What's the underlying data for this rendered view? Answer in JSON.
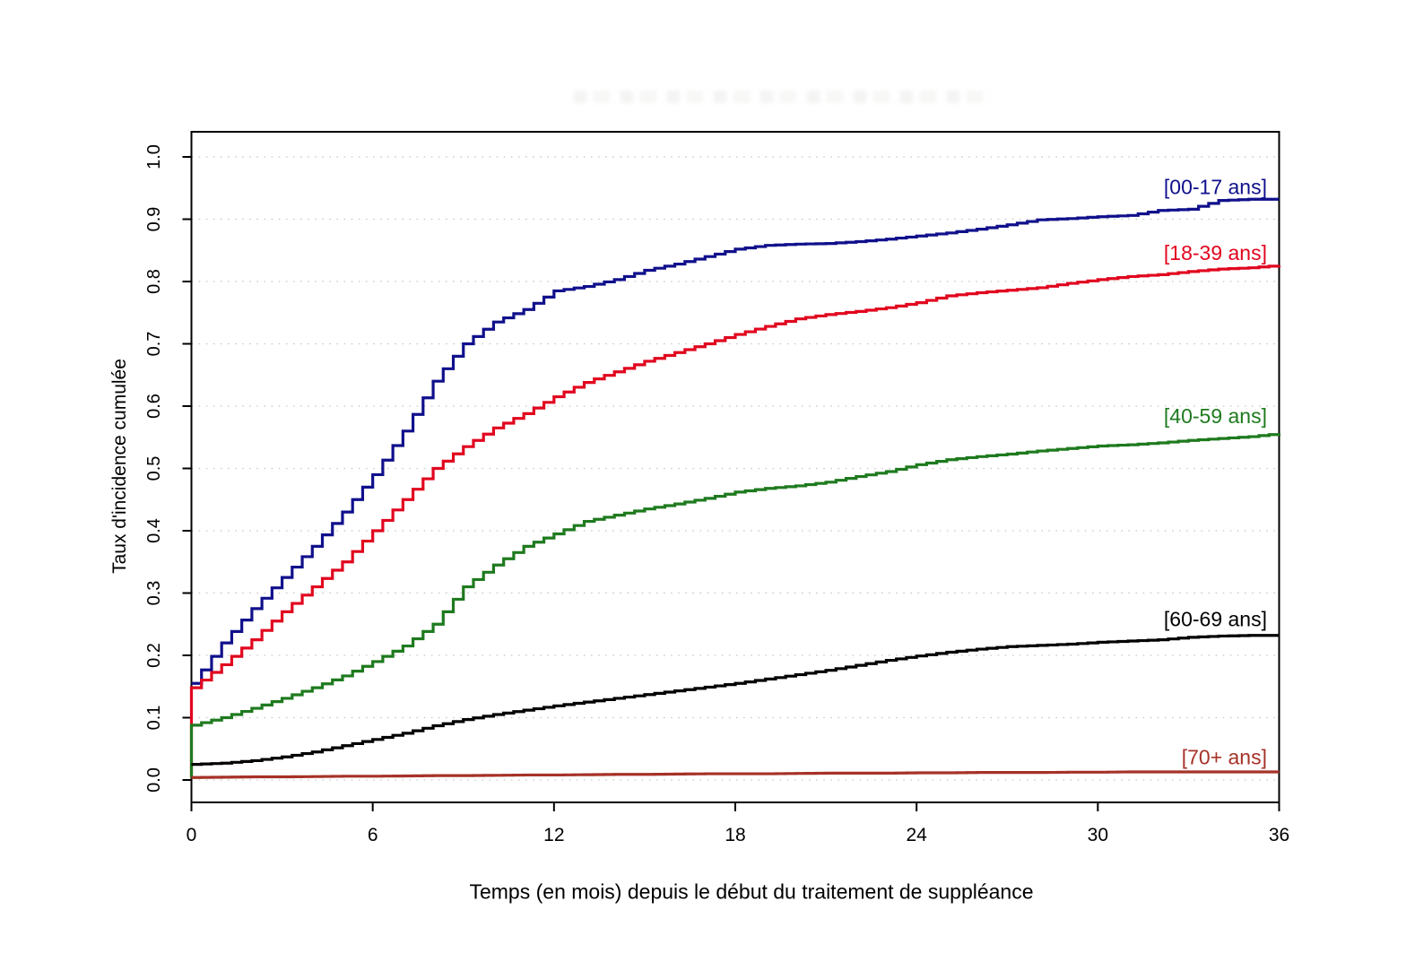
{
  "figure": {
    "x_axis_title": "Temps (en mois) depuis le début du traitement de suppléance",
    "y_axis_title": "Taux d'incidence cumulée",
    "background_color": "#FFFFFF",
    "axis_color": "#000000",
    "grid_color": "#C6C6C6"
  },
  "chart_data": {
    "type": "line",
    "subtype": "cumulative-incidence-step-curves",
    "title": "",
    "xlabel": "Temps (en mois) depuis le début du traitement de suppléance",
    "ylabel": "Taux d'incidence cumulée",
    "xlim": [
      0,
      36
    ],
    "ylim": [
      0.0,
      1.0
    ],
    "grid": "horizontal-dotted",
    "legend_position": "labels-at-right-inside-plot",
    "x_ticks": [
      0,
      6,
      12,
      18,
      24,
      30,
      36
    ],
    "x_tick_labels": [
      "0",
      "6",
      "12",
      "18",
      "24",
      "30",
      "36"
    ],
    "y_ticks": [
      0.0,
      0.1,
      0.2,
      0.3,
      0.4,
      0.5,
      0.6,
      0.7,
      0.8,
      0.9,
      1.0
    ],
    "y_tick_labels": [
      "0.0",
      "0.1",
      "0.2",
      "0.3",
      "0.4",
      "0.5",
      "0.6",
      "0.7",
      "0.8",
      "0.9",
      "1.0"
    ],
    "x": [
      0,
      1,
      2,
      3,
      4,
      5,
      6,
      7,
      8,
      9,
      10,
      11,
      12,
      13,
      14,
      15,
      16,
      17,
      18,
      19,
      20,
      21,
      22,
      23,
      24,
      25,
      26,
      27,
      28,
      29,
      30,
      31,
      32,
      33,
      34,
      35,
      36
    ],
    "series": [
      {
        "name": "[00-17 ans]",
        "color": "#10108C",
        "start_jump": false,
        "label_y": 0.952,
        "values": [
          0.155,
          0.22,
          0.275,
          0.325,
          0.375,
          0.43,
          0.49,
          0.56,
          0.64,
          0.7,
          0.735,
          0.755,
          0.785,
          0.792,
          0.803,
          0.818,
          0.828,
          0.84,
          0.852,
          0.858,
          0.86,
          0.861,
          0.864,
          0.868,
          0.873,
          0.878,
          0.884,
          0.891,
          0.899,
          0.901,
          0.904,
          0.906,
          0.914,
          0.916,
          0.93,
          0.932,
          0.932
        ]
      },
      {
        "name": "[18-39 ans]",
        "color": "#E1051E",
        "start_jump": true,
        "label_y": 0.846,
        "values": [
          0.148,
          0.185,
          0.225,
          0.27,
          0.31,
          0.35,
          0.4,
          0.45,
          0.5,
          0.535,
          0.565,
          0.588,
          0.615,
          0.638,
          0.655,
          0.672,
          0.686,
          0.7,
          0.715,
          0.728,
          0.74,
          0.747,
          0.752,
          0.758,
          0.766,
          0.777,
          0.782,
          0.786,
          0.79,
          0.797,
          0.803,
          0.808,
          0.811,
          0.816,
          0.82,
          0.822,
          0.826
        ]
      },
      {
        "name": "[40-59 ans]",
        "color": "#1E7A1E",
        "start_jump": true,
        "label_y": 0.584,
        "values": [
          0.088,
          0.1,
          0.115,
          0.131,
          0.148,
          0.167,
          0.19,
          0.215,
          0.25,
          0.31,
          0.345,
          0.375,
          0.395,
          0.415,
          0.425,
          0.435,
          0.443,
          0.452,
          0.462,
          0.468,
          0.472,
          0.478,
          0.487,
          0.495,
          0.506,
          0.514,
          0.519,
          0.523,
          0.528,
          0.532,
          0.536,
          0.538,
          0.541,
          0.545,
          0.548,
          0.551,
          0.556
        ]
      },
      {
        "name": "[60-69 ans]",
        "color": "#000000",
        "start_jump": false,
        "label_y": 0.258,
        "values": [
          0.025,
          0.027,
          0.031,
          0.037,
          0.045,
          0.055,
          0.065,
          0.075,
          0.087,
          0.097,
          0.105,
          0.112,
          0.119,
          0.125,
          0.131,
          0.137,
          0.143,
          0.149,
          0.155,
          0.162,
          0.169,
          0.176,
          0.184,
          0.192,
          0.199,
          0.205,
          0.21,
          0.214,
          0.216,
          0.218,
          0.221,
          0.223,
          0.225,
          0.229,
          0.231,
          0.232,
          0.232
        ]
      },
      {
        "name": "[70+ ans]",
        "color": "#A63228",
        "start_jump": false,
        "label_y": 0.037,
        "values": [
          0.004,
          0.0045,
          0.005,
          0.005,
          0.0055,
          0.006,
          0.006,
          0.0065,
          0.007,
          0.007,
          0.0075,
          0.008,
          0.008,
          0.0085,
          0.009,
          0.009,
          0.0095,
          0.01,
          0.01,
          0.01,
          0.0105,
          0.011,
          0.011,
          0.011,
          0.0115,
          0.0115,
          0.012,
          0.012,
          0.012,
          0.0125,
          0.0125,
          0.013,
          0.013,
          0.013,
          0.013,
          0.013,
          0.013
        ]
      }
    ]
  }
}
